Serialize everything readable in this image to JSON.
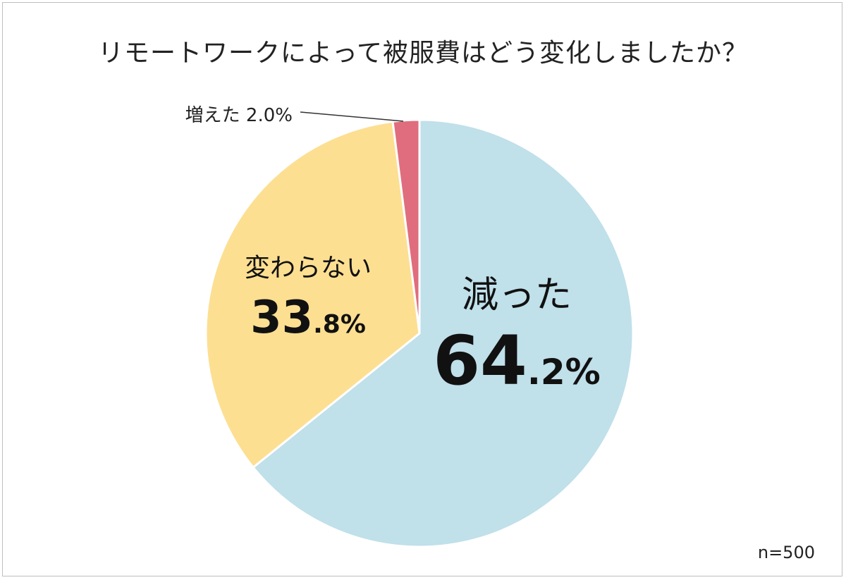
{
  "title": "リモートワークによって被服費はどう変化しましたか？",
  "sample_size": "n=500",
  "chart_data": {
    "type": "pie",
    "title": "リモートワークによって被服費はどう変化しましたか？",
    "start": "12 o'clock",
    "direction": "clockwise",
    "slices": [
      {
        "label": "減った",
        "value": 64.2,
        "value_int": "64",
        "value_dec": ".2%",
        "color": "#c0e0ea"
      },
      {
        "label": "変わらない",
        "value": 33.8,
        "value_int": "33",
        "value_dec": ".8%",
        "color": "#fddf92"
      },
      {
        "label": "増えた 2.0%",
        "value": 2.0,
        "color": "#e06d7d"
      }
    ],
    "legend": "none"
  }
}
